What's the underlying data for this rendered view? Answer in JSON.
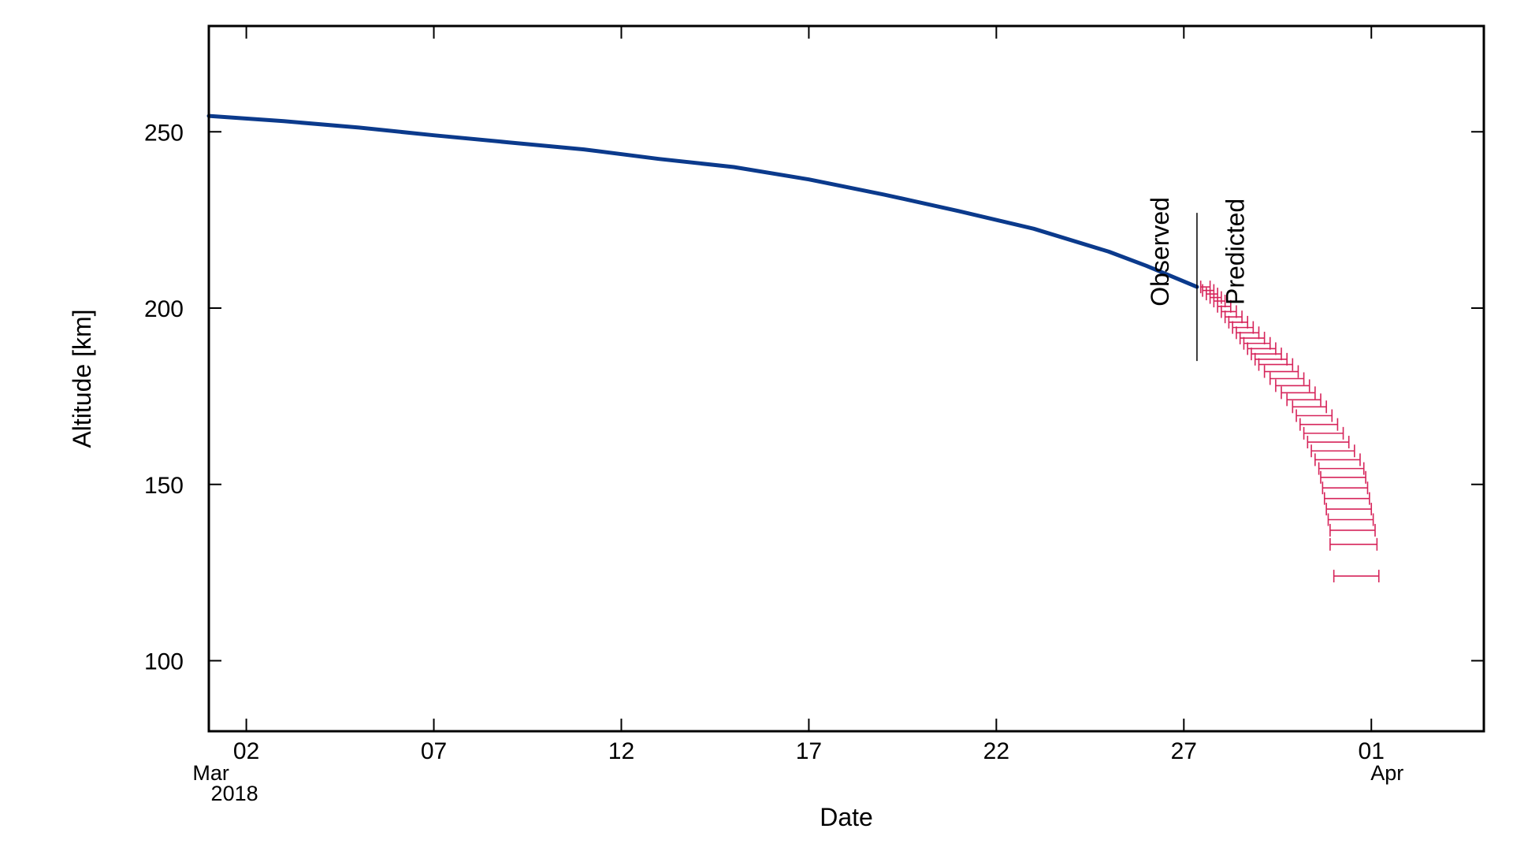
{
  "chart_data": {
    "type": "line",
    "title": "",
    "xlabel": "Date",
    "ylabel": "Altitude [km]",
    "x_range": [
      "2018-03-01",
      "2018-04-04"
    ],
    "ylim": [
      80,
      280
    ],
    "grid": false,
    "x_ticks": [
      {
        "date": "2018-03-02",
        "label": "02",
        "sub": "Mar",
        "sub2": "2018"
      },
      {
        "date": "2018-03-07",
        "label": "07"
      },
      {
        "date": "2018-03-12",
        "label": "12"
      },
      {
        "date": "2018-03-17",
        "label": "17"
      },
      {
        "date": "2018-03-22",
        "label": "22"
      },
      {
        "date": "2018-03-27",
        "label": "27"
      },
      {
        "date": "2018-04-01",
        "label": "01",
        "sub": "Apr"
      }
    ],
    "y_ticks": [
      100,
      150,
      200,
      250
    ],
    "divider": {
      "date": "2018-03-27.35",
      "y_range": [
        185,
        227
      ]
    },
    "annotations": [
      {
        "text": "Observed",
        "date": "2018-03-26.6",
        "y": 216
      },
      {
        "text": "Predicted",
        "date": "2018-03-28.6",
        "y": 216
      }
    ],
    "colors": {
      "observed": "#0b3a8c",
      "predicted": "#d6245a"
    },
    "observed": {
      "x": [
        "2018-03-01",
        "2018-03-03",
        "2018-03-05",
        "2018-03-07",
        "2018-03-09",
        "2018-03-11",
        "2018-03-13",
        "2018-03-15",
        "2018-03-17",
        "2018-03-19",
        "2018-03-21",
        "2018-03-23",
        "2018-03-25",
        "2018-03-26",
        "2018-03-27.35"
      ],
      "y": [
        254.5,
        253,
        251.2,
        249,
        247,
        245,
        242.3,
        240,
        236.5,
        232.2,
        227.5,
        222.5,
        216,
        212,
        206
      ]
    },
    "predicted": {
      "y": [
        206,
        205,
        204,
        203,
        202,
        200.5,
        199,
        197.5,
        196,
        194.5,
        193,
        191.5,
        190,
        188.5,
        187,
        185.5,
        184,
        182,
        180,
        178,
        176,
        174,
        172,
        169.5,
        167,
        164.5,
        162,
        159.5,
        157,
        154.5,
        152,
        149,
        146,
        143,
        140,
        137,
        133,
        124
      ],
      "x_min": [
        "2018-03-27.45",
        "2018-03-27.5",
        "2018-03-27.6",
        "2018-03-27.7",
        "2018-03-27.8",
        "2018-03-27.9",
        "2018-03-28.0",
        "2018-03-28.1",
        "2018-03-28.2",
        "2018-03-28.3",
        "2018-03-28.4",
        "2018-03-28.5",
        "2018-03-28.6",
        "2018-03-28.7",
        "2018-03-28.8",
        "2018-03-28.9",
        "2018-03-29.0",
        "2018-03-29.15",
        "2018-03-29.3",
        "2018-03-29.45",
        "2018-03-29.6",
        "2018-03-29.75",
        "2018-03-29.9",
        "2018-03-30.0",
        "2018-03-30.1",
        "2018-03-30.2",
        "2018-03-30.3",
        "2018-03-30.4",
        "2018-03-30.5",
        "2018-03-30.6",
        "2018-03-30.65",
        "2018-03-30.7",
        "2018-03-30.75",
        "2018-03-30.8",
        "2018-03-30.85",
        "2018-03-30.9",
        "2018-03-30.9",
        "2018-03-31.0"
      ],
      "x_max": [
        "2018-03-27.7",
        "2018-03-27.8",
        "2018-03-27.9",
        "2018-03-28.0",
        "2018-03-28.1",
        "2018-03-28.25",
        "2018-03-28.4",
        "2018-03-28.55",
        "2018-03-28.7",
        "2018-03-28.85",
        "2018-03-29.0",
        "2018-03-29.15",
        "2018-03-29.3",
        "2018-03-29.45",
        "2018-03-29.6",
        "2018-03-29.75",
        "2018-03-29.9",
        "2018-03-30.05",
        "2018-03-30.2",
        "2018-03-30.35",
        "2018-03-30.5",
        "2018-03-30.65",
        "2018-03-30.8",
        "2018-03-30.95",
        "2018-03-31.1",
        "2018-03-31.25",
        "2018-03-31.4",
        "2018-03-31.55",
        "2018-03-31.7",
        "2018-03-31.8",
        "2018-03-31.85",
        "2018-03-31.9",
        "2018-03-31.95",
        "2018-04-01.0",
        "2018-04-01.05",
        "2018-04-01.1",
        "2018-04-01.15",
        "2018-04-01.2"
      ]
    }
  }
}
